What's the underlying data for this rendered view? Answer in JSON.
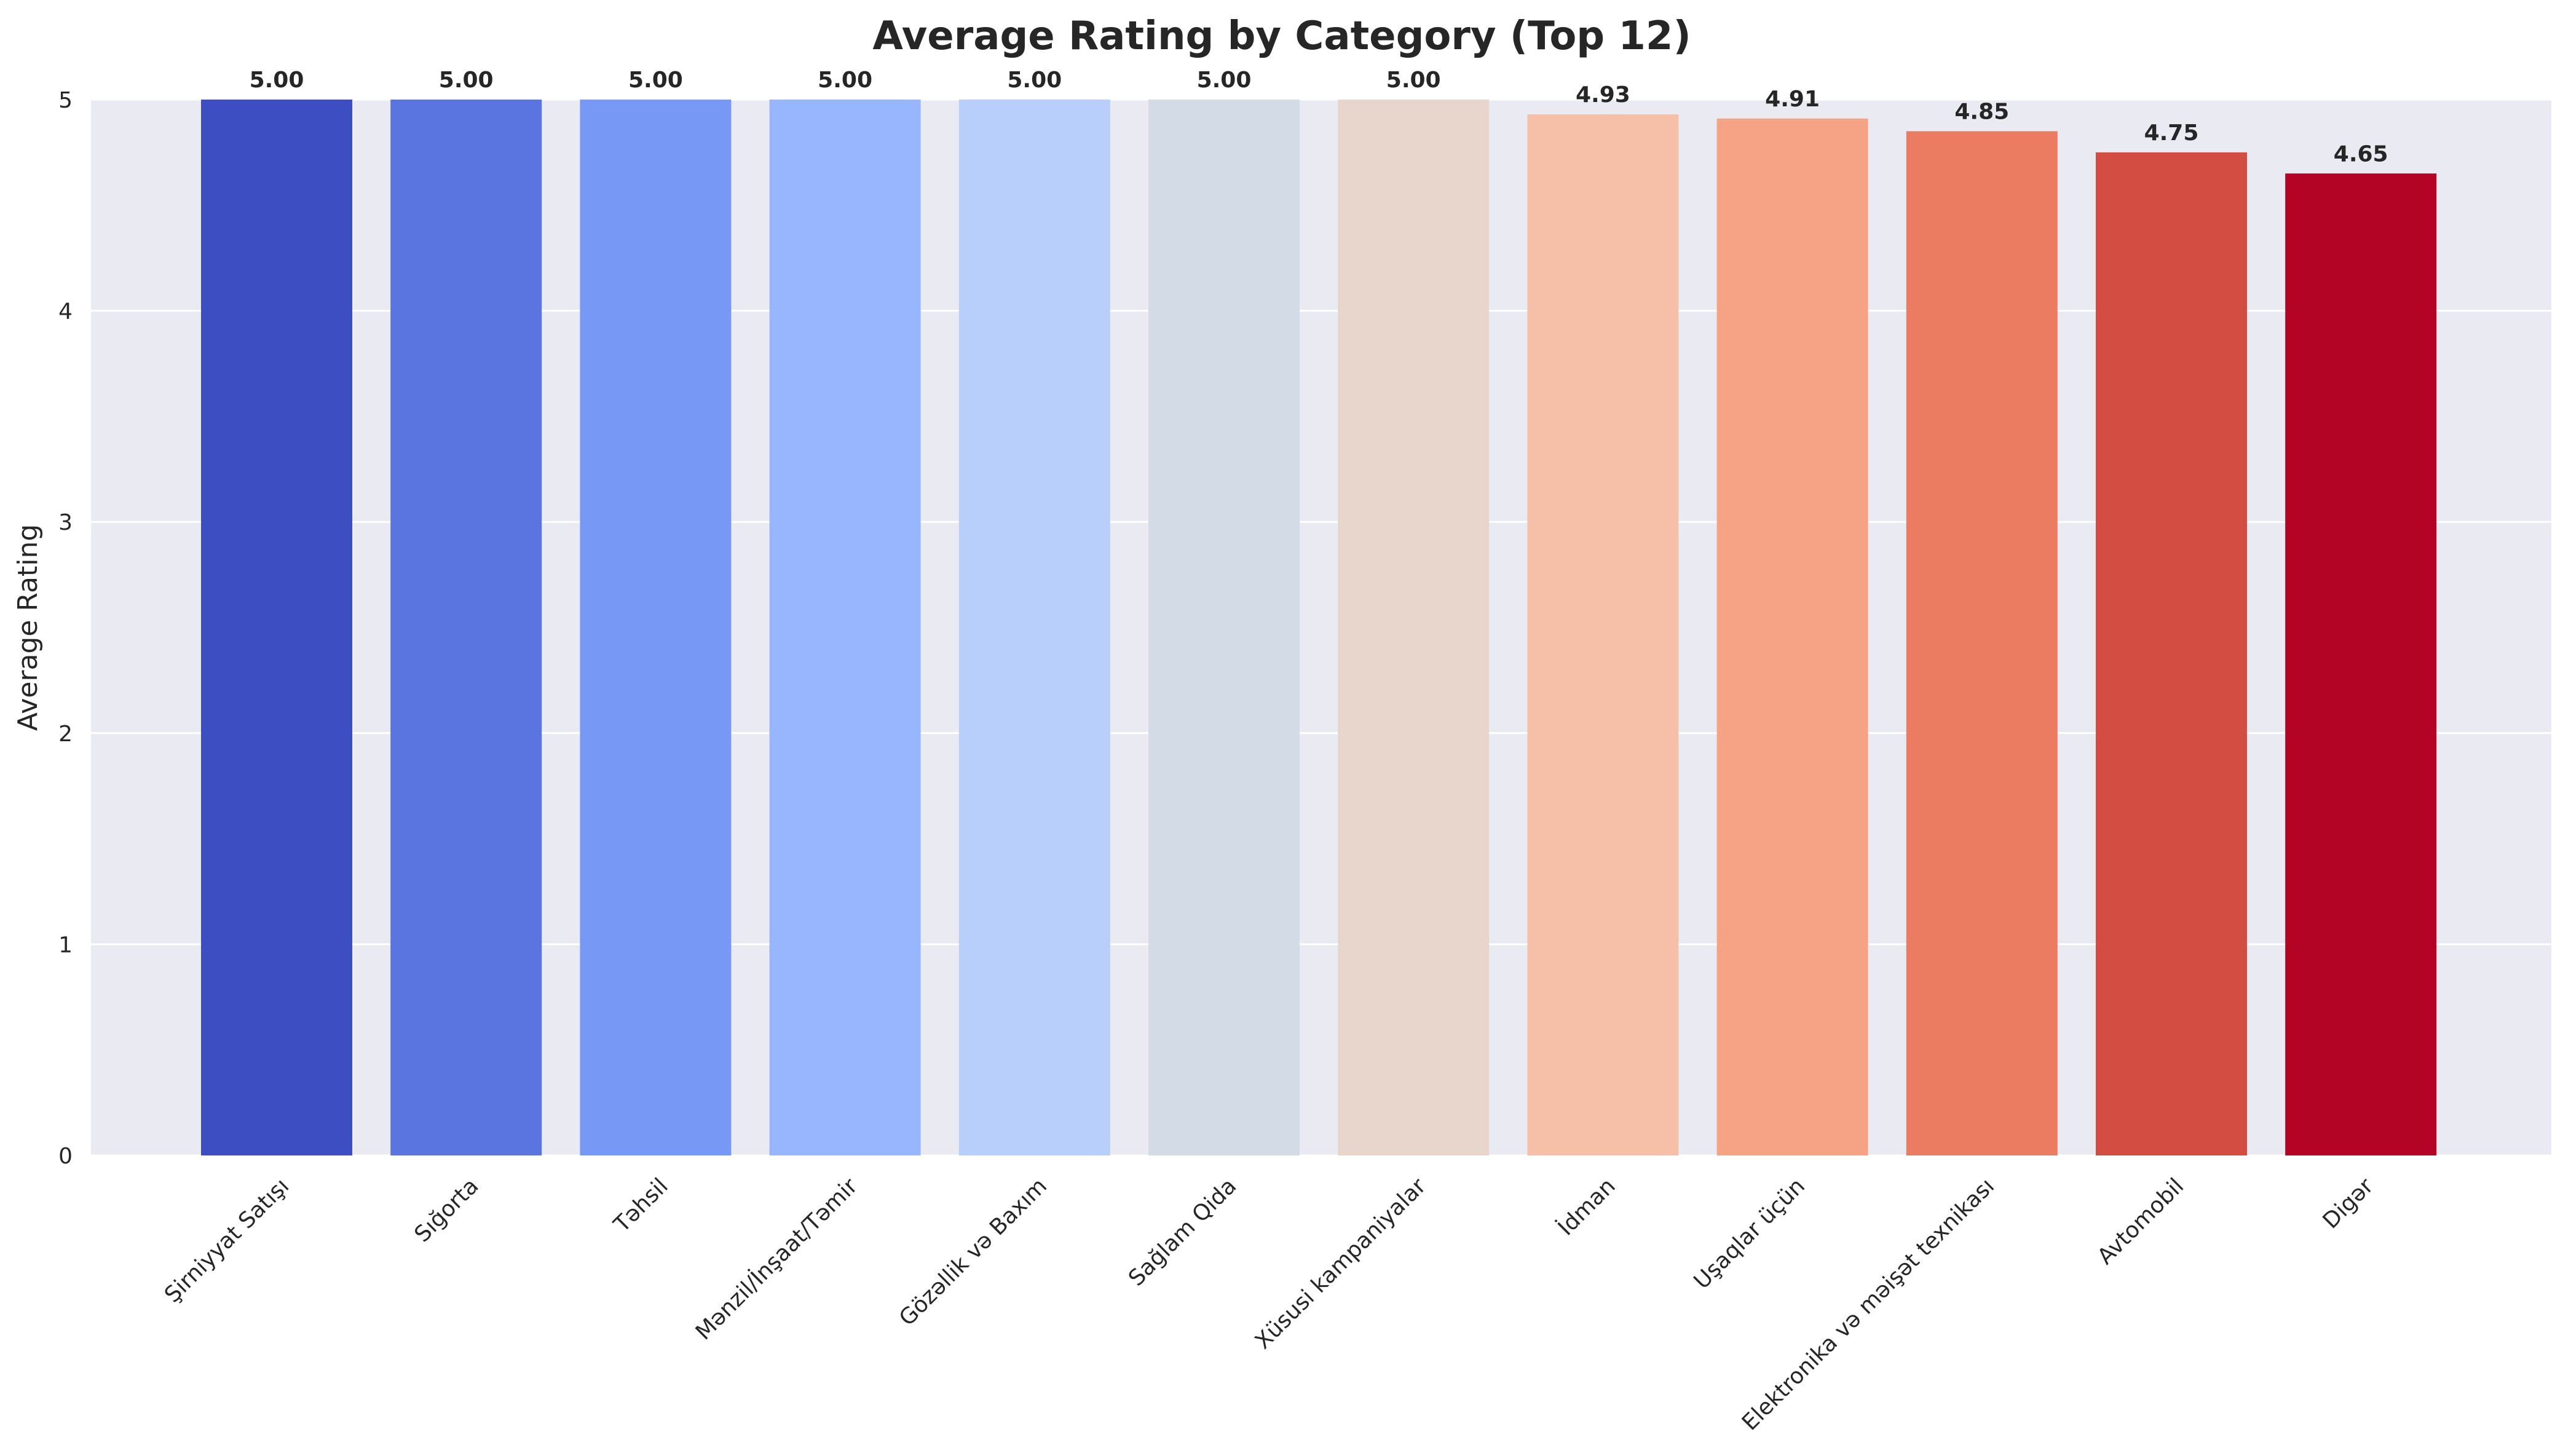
{
  "chart_data": {
    "type": "bar",
    "title": "Average Rating by Category (Top 12)",
    "xlabel": "",
    "ylabel": "Average Rating",
    "ylim": [
      0,
      5
    ],
    "yticks": [
      "0",
      "1",
      "2",
      "3",
      "4",
      "5"
    ],
    "grid": true,
    "categories": [
      "Şirniyyat Satışı",
      "Sığorta",
      "Təhsil",
      "Mənzil/İnşaat/Təmir",
      "Gözəllik və Baxım",
      "Sağlam Qida",
      "Xüsusi kampaniyalar",
      "İdman",
      "Uşaqlar üçün",
      "Elektronika və məişət texnikası",
      "Avtomobil",
      "Digər"
    ],
    "values": [
      5.0,
      5.0,
      5.0,
      5.0,
      5.0,
      5.0,
      5.0,
      4.93,
      4.91,
      4.85,
      4.75,
      4.65
    ],
    "value_labels": [
      "5.00",
      "5.00",
      "5.00",
      "5.00",
      "5.00",
      "5.00",
      "5.00",
      "4.93",
      "4.91",
      "4.85",
      "4.75",
      "4.65"
    ],
    "colors": [
      "#3d4ec2",
      "#5a75e0",
      "#7799f5",
      "#98b6fd",
      "#b8cefb",
      "#d3dbe7",
      "#e8d6cc",
      "#f5c0a7",
      "#f6a385",
      "#eb7c61",
      "#d44d43",
      "#b40426"
    ],
    "background_color": "#eaeaf2",
    "grid_color": "#ffffff"
  }
}
